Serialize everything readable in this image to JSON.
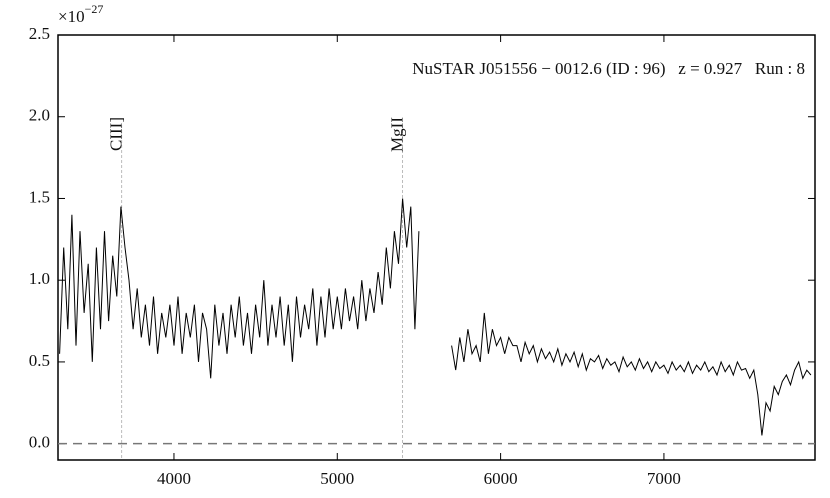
{
  "chart_data": {
    "type": "line",
    "title": "NuSTAR J051556 − 0012.6 (ID : 96)   z = 0.927   Run : 8",
    "y_multiplier": {
      "base": "×10",
      "exponent": "−27"
    },
    "xlim": [
      3290,
      7925
    ],
    "ylim": [
      -0.1,
      2.5
    ],
    "xticks": [
      4000,
      5000,
      6000,
      7000
    ],
    "yticks": [
      {
        "value": 0,
        "label": "0.0"
      },
      0.5,
      {
        "value": 1,
        "label": "1.0"
      },
      1.5,
      {
        "value": 2,
        "label": "2.0"
      },
      2.5
    ],
    "hline": 0,
    "annotations": [
      {
        "label": "CIII]",
        "x": 3680
      },
      {
        "label": "MgII",
        "x": 5400
      }
    ],
    "x": [
      3300,
      3325,
      3350,
      3375,
      3400,
      3425,
      3450,
      3475,
      3500,
      3525,
      3550,
      3575,
      3600,
      3625,
      3650,
      3675,
      3700,
      3725,
      3750,
      3775,
      3800,
      3825,
      3850,
      3875,
      3900,
      3925,
      3950,
      3975,
      4000,
      4025,
      4050,
      4075,
      4100,
      4125,
      4150,
      4175,
      4200,
      4225,
      4250,
      4275,
      4300,
      4325,
      4350,
      4375,
      4400,
      4425,
      4450,
      4475,
      4500,
      4525,
      4550,
      4575,
      4600,
      4625,
      4650,
      4675,
      4700,
      4725,
      4750,
      4775,
      4800,
      4825,
      4850,
      4875,
      4900,
      4925,
      4950,
      4975,
      5000,
      5025,
      5050,
      5075,
      5100,
      5125,
      5150,
      5175,
      5200,
      5225,
      5250,
      5275,
      5300,
      5325,
      5350,
      5375,
      5400,
      5425,
      5450,
      5475,
      5500,
      5600,
      5700,
      5725,
      5750,
      5775,
      5800,
      5825,
      5850,
      5875,
      5900,
      5925,
      5950,
      5975,
      6000,
      6025,
      6050,
      6075,
      6100,
      6125,
      6150,
      6175,
      6200,
      6225,
      6250,
      6275,
      6300,
      6325,
      6350,
      6375,
      6400,
      6425,
      6450,
      6475,
      6500,
      6525,
      6550,
      6575,
      6600,
      6625,
      6650,
      6675,
      6700,
      6725,
      6750,
      6775,
      6800,
      6825,
      6850,
      6875,
      6900,
      6925,
      6950,
      6975,
      7000,
      7025,
      7050,
      7075,
      7100,
      7125,
      7150,
      7175,
      7200,
      7225,
      7250,
      7275,
      7300,
      7325,
      7350,
      7375,
      7400,
      7425,
      7450,
      7475,
      7500,
      7525,
      7550,
      7575,
      7600,
      7625,
      7650,
      7675,
      7700,
      7725,
      7750,
      7775,
      7800,
      7825,
      7850,
      7875,
      7900
    ],
    "series": [
      {
        "color": "#000000",
        "values": [
          0.55,
          1.2,
          0.7,
          1.4,
          0.6,
          1.3,
          0.8,
          1.1,
          0.5,
          1.2,
          0.7,
          1.3,
          0.75,
          1.15,
          0.9,
          1.45,
          1.2,
          1.0,
          0.7,
          0.95,
          0.65,
          0.85,
          0.6,
          0.9,
          0.55,
          0.8,
          0.65,
          0.85,
          0.6,
          0.9,
          0.55,
          0.8,
          0.65,
          0.85,
          0.5,
          0.8,
          0.7,
          0.4,
          0.85,
          0.6,
          0.8,
          0.55,
          0.85,
          0.65,
          0.9,
          0.6,
          0.8,
          0.55,
          0.85,
          0.65,
          1.0,
          0.6,
          0.85,
          0.65,
          0.9,
          0.6,
          0.85,
          0.5,
          0.9,
          0.65,
          0.85,
          0.7,
          0.95,
          0.6,
          0.9,
          0.65,
          0.95,
          0.7,
          0.9,
          0.7,
          0.95,
          0.75,
          0.9,
          0.7,
          1.0,
          0.75,
          0.95,
          0.8,
          1.05,
          0.85,
          1.2,
          0.95,
          1.3,
          1.1,
          1.5,
          1.2,
          1.45,
          0.7,
          1.3,
          null,
          0.6,
          0.45,
          0.65,
          0.5,
          0.7,
          0.55,
          0.6,
          0.5,
          0.8,
          0.55,
          0.7,
          0.6,
          0.65,
          0.55,
          0.65,
          0.6,
          0.6,
          0.5,
          0.62,
          0.55,
          0.6,
          0.5,
          0.58,
          0.52,
          0.56,
          0.5,
          0.58,
          0.48,
          0.55,
          0.5,
          0.56,
          0.47,
          0.55,
          0.45,
          0.52,
          0.5,
          0.54,
          0.46,
          0.52,
          0.48,
          0.5,
          0.44,
          0.53,
          0.47,
          0.5,
          0.45,
          0.52,
          0.46,
          0.5,
          0.44,
          0.5,
          0.46,
          0.48,
          0.43,
          0.5,
          0.45,
          0.48,
          0.44,
          0.5,
          0.43,
          0.48,
          0.45,
          0.5,
          0.44,
          0.47,
          0.42,
          0.5,
          0.44,
          0.48,
          0.42,
          0.5,
          0.45,
          0.46,
          0.4,
          0.45,
          0.3,
          0.05,
          0.25,
          0.2,
          0.35,
          0.3,
          0.38,
          0.42,
          0.36,
          0.45,
          0.5,
          0.4,
          0.45,
          0.42
        ]
      }
    ]
  }
}
